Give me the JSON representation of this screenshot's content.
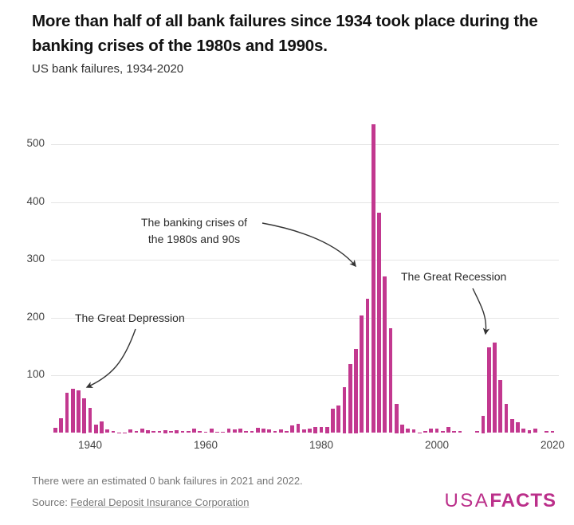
{
  "header": {
    "title": "More than half of all bank failures since 1934 took place during the banking crises of the 1980s and 1990s.",
    "subtitle": "US bank failures, 1934-2020"
  },
  "chart_data": {
    "type": "bar",
    "title": "US bank failures, 1934-2020",
    "xlabel": "",
    "ylabel": "",
    "grid": "horizontal",
    "legend": "none",
    "bar_color": "#c2388f",
    "axis_text_color": "#444444",
    "ylim": [
      0,
      540
    ],
    "y_ticks": [
      100,
      200,
      300,
      400,
      500
    ],
    "x_ticks": [
      1940,
      1960,
      1980,
      2000,
      2020
    ],
    "years": [
      1934,
      1935,
      1936,
      1937,
      1938,
      1939,
      1940,
      1941,
      1942,
      1943,
      1944,
      1945,
      1946,
      1947,
      1948,
      1949,
      1950,
      1951,
      1952,
      1953,
      1954,
      1955,
      1956,
      1957,
      1958,
      1959,
      1960,
      1961,
      1962,
      1963,
      1964,
      1965,
      1966,
      1967,
      1968,
      1969,
      1970,
      1971,
      1972,
      1973,
      1974,
      1975,
      1976,
      1977,
      1978,
      1979,
      1980,
      1981,
      1982,
      1983,
      1984,
      1985,
      1986,
      1987,
      1988,
      1989,
      1990,
      1991,
      1992,
      1993,
      1994,
      1995,
      1996,
      1997,
      1998,
      1999,
      2000,
      2001,
      2002,
      2003,
      2004,
      2005,
      2006,
      2007,
      2008,
      2009,
      2010,
      2011,
      2012,
      2013,
      2014,
      2015,
      2016,
      2017,
      2018,
      2019,
      2020
    ],
    "values": [
      9,
      26,
      69,
      77,
      74,
      60,
      43,
      15,
      20,
      6,
      4,
      1,
      1,
      6,
      3,
      8,
      5,
      4,
      4,
      5,
      3,
      5,
      3,
      3,
      7,
      4,
      2,
      7,
      2,
      2,
      8,
      6,
      8,
      4,
      3,
      9,
      8,
      6,
      3,
      6,
      4,
      13,
      16,
      6,
      7,
      10,
      11,
      10,
      42,
      48,
      80,
      120,
      145,
      203,
      232,
      534,
      382,
      271,
      181,
      50,
      15,
      8,
      6,
      1,
      3,
      8,
      7,
      4,
      11,
      3,
      4,
      0,
      0,
      3,
      30,
      148,
      157,
      92,
      51,
      24,
      18,
      8,
      5,
      8,
      0,
      4,
      4
    ],
    "annotations": [
      {
        "text": "The Great Depression",
        "target_year": 1937
      },
      {
        "lines": [
          "The banking crises of",
          "the 1980s and 90s"
        ],
        "target_year": 1988
      },
      {
        "text": "The Great Recession",
        "target_year": 2010
      }
    ]
  },
  "footer": {
    "note": "There were an estimated 0 bank failures in 2021 and 2022.",
    "source_prefix": "Source: ",
    "source_link": "Federal Deposit Insurance Corporation"
  },
  "logo": {
    "part1": "USA",
    "part2": "FACTS",
    "color": "#bb2f8a"
  }
}
